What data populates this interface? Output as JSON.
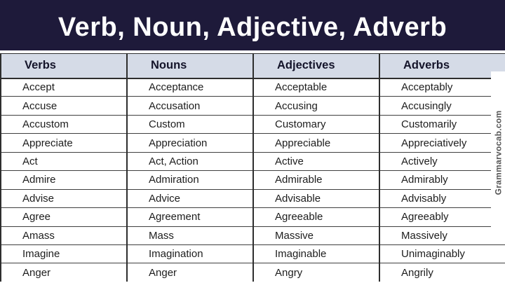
{
  "header": {
    "title": "Verb, Noun, Adjective, Adverb"
  },
  "table": {
    "columns": [
      "Verbs",
      "Nouns",
      "Adjectives",
      "Adverbs"
    ],
    "rows": [
      [
        "Accept",
        "Acceptance",
        "Acceptable",
        "Acceptably"
      ],
      [
        "Accuse",
        "Accusation",
        "Accusing",
        "Accusingly"
      ],
      [
        "Accustom",
        "Custom",
        "Customary",
        "Customarily"
      ],
      [
        "Appreciate",
        "Appreciation",
        "Appreciable",
        "Appreciatively"
      ],
      [
        "Act",
        "Act, Action",
        "Active",
        "Actively"
      ],
      [
        "Admire",
        "Admiration",
        "Admirable",
        "Admirably"
      ],
      [
        "Advise",
        "Advice",
        "Advisable",
        "Advisably"
      ],
      [
        "Agree",
        "Agreement",
        "Agreeable",
        "Agreeably"
      ],
      [
        "Amass",
        "Mass",
        "Massive",
        "Massively"
      ],
      [
        "Imagine",
        "Imagination",
        "Imaginable",
        "Unimaginably"
      ],
      [
        "Anger",
        "Anger",
        "Angry",
        "Angrily"
      ]
    ]
  },
  "watermark": {
    "text": "Grammarvocab.com"
  },
  "colors": {
    "banner_bg": "#1e1a3a",
    "header_row_bg": "#d5dbe7",
    "border": "#2e2e2e",
    "title_text": "#ffffff",
    "watermark_text": "#555555"
  }
}
